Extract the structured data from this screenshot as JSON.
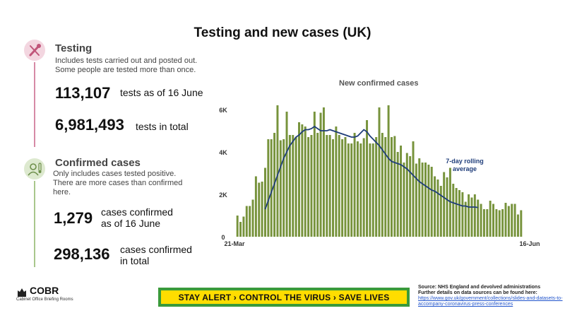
{
  "title": "Testing and new cases (UK)",
  "testing": {
    "heading": "Testing",
    "description": "Includes tests carried out and posted out. Some people are tested more than once.",
    "daily_value": "113,107",
    "daily_label": "tests as of 16 June",
    "total_value": "6,981,493",
    "total_label": "tests in total",
    "icon": "test-swab-icon",
    "accent": "#c0557a"
  },
  "confirmed": {
    "heading": "Confirmed cases",
    "description": "Only includes cases tested positive. There are more cases than confirmed here.",
    "daily_value": "1,279",
    "daily_label_1": "cases confirmed",
    "daily_label_2": "as of 16 June",
    "total_value": "298,136",
    "total_label_1": "cases confirmed",
    "total_label_2": "in total",
    "icon": "person-thermometer-icon",
    "accent": "#8db56a"
  },
  "chart_data": {
    "type": "bar",
    "title": "New confirmed cases",
    "x_start_label": "21-Mar",
    "x_end_label": "16-Jun",
    "yticks": [
      "0",
      "2K",
      "4K",
      "6K"
    ],
    "ylim": [
      0,
      6500
    ],
    "bar_color": "#77933c",
    "line_color": "#1f3d7a",
    "line_label": "7-day rolling average",
    "values": [
      1000,
      700,
      950,
      1450,
      1450,
      1750,
      2850,
      2550,
      2600,
      3250,
      4600,
      4600,
      4900,
      6200,
      4550,
      4600,
      5900,
      4800,
      4800,
      4700,
      5400,
      5300,
      5200,
      4700,
      4800,
      5900,
      4900,
      5850,
      6100,
      4800,
      4800,
      4600,
      5200,
      4800,
      4600,
      4700,
      4400,
      4400,
      4900,
      4500,
      4400,
      4650,
      5500,
      4400,
      4400,
      4700,
      6100,
      4900,
      4700,
      6200,
      4700,
      4750,
      4000,
      4300,
      3500,
      3950,
      3800,
      4500,
      3450,
      3700,
      3500,
      3500,
      3400,
      3300,
      2850,
      2700,
      2400,
      3050,
      2800,
      3250,
      2500,
      2300,
      2200,
      2100,
      1650,
      2000,
      1850,
      2000,
      1750,
      1550,
      1300,
      1300,
      1700,
      1550,
      1300,
      1250,
      1300,
      1600,
      1450,
      1550,
      1550,
      1050,
      1250
    ],
    "rolling_average": [
      1300,
      1700,
      2100,
      2500,
      2900,
      3300,
      3700,
      4000,
      4300,
      4500,
      4700,
      4800,
      4950,
      5050,
      5050,
      5100,
      5200,
      5100,
      5000,
      5000,
      5000,
      5050,
      5000,
      4950,
      4900,
      4850,
      4800,
      4750,
      4700,
      4700,
      4750,
      4900,
      5050,
      4950,
      4750,
      4600,
      4450,
      4300,
      4100,
      3900,
      3700,
      3550,
      3500,
      3450,
      3400,
      3300,
      3200,
      3050,
      2900,
      2750,
      2600,
      2500,
      2400,
      2300,
      2200,
      2150,
      2050,
      1950,
      1850,
      1750,
      1650,
      1600,
      1550,
      1500,
      1450,
      1450,
      1400,
      1400,
      1400,
      1380
    ],
    "rolling_start_index": 23
  },
  "banner_text": "STAY ALERT › CONTROL THE VIRUS › SAVE LIVES",
  "logo": {
    "name": "COBR",
    "subtitle": "Cabinet Office Briefing Rooms",
    "icon": "royal-crest-icon"
  },
  "source": {
    "line1": "Source: NHS England and devolved administrations",
    "line2": "Further details on data sources can be found here:",
    "link1": "https://www.gov.uk/government/collections/slides-and-datasets-to-",
    "link2": "accompany-coronavirus-press-conferences"
  }
}
